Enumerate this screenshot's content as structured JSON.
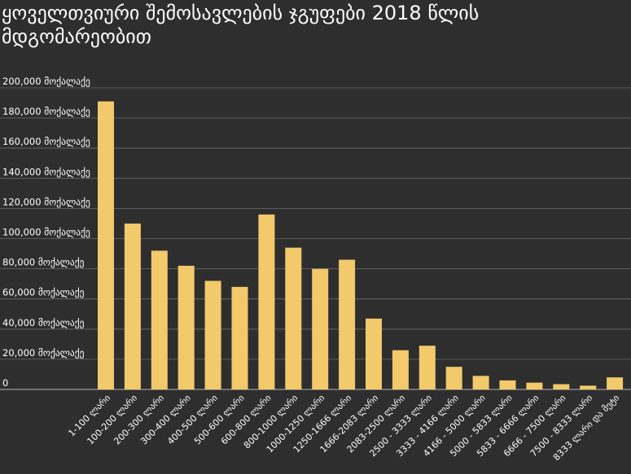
{
  "chart_data": {
    "type": "bar",
    "title": "ყოველთვიური შემოსავლების ჯგუფები 2018 წლის მდგომარეობით",
    "categories": [
      "1-100 ლარი",
      "100-200 ლარი",
      "200-300 ლარი",
      "300-400 ლარი",
      "400-500 ლარი",
      "500-600 ლარი",
      "600-800 ლარი",
      "800-1000 ლარი",
      "1000-1250 ლარი",
      "1250-1666 ლარი",
      "1666-2083 ლარი",
      "2083-2500 ლარი",
      "2500 - 3333 ლარი",
      "3333 - 4166 ლარი",
      "4166 - 5000 ლარი",
      "5000 - 5833 ლარი",
      "5833 - 6666 ლარი",
      "6666 - 7500 ლარი",
      "7500 - 8333 ლარი",
      "8333 ლარი და მეტი"
    ],
    "values": [
      191000,
      110000,
      92000,
      82000,
      72000,
      68000,
      116000,
      94000,
      80000,
      86000,
      47000,
      26000,
      29000,
      15000,
      9000,
      6000,
      4500,
      3500,
      2500,
      8000
    ],
    "ylim": [
      0,
      200000
    ],
    "y_ticks": [
      {
        "value": 0,
        "label": "0"
      },
      {
        "value": 20000,
        "label": "20,000 მოქალაქე"
      },
      {
        "value": 40000,
        "label": "40,000 მოქალაქე"
      },
      {
        "value": 60000,
        "label": "60,000 მოქალაქე"
      },
      {
        "value": 80000,
        "label": "80,000 მოქალაქე"
      },
      {
        "value": 100000,
        "label": "100,000 მოქალაქე"
      },
      {
        "value": 120000,
        "label": "120,000 მოქალაქე"
      },
      {
        "value": 140000,
        "label": "140,000 მოქალაქე"
      },
      {
        "value": 160000,
        "label": "160,000 მოქალაქე"
      },
      {
        "value": 180000,
        "label": "180,000 მოქალაქე"
      },
      {
        "value": 200000,
        "label": "200,000 მოქალაქე"
      }
    ],
    "grid": true,
    "bar_color": "#f2c96b",
    "grid_color": "#6a6a6a",
    "background": "#2e2e2e"
  }
}
